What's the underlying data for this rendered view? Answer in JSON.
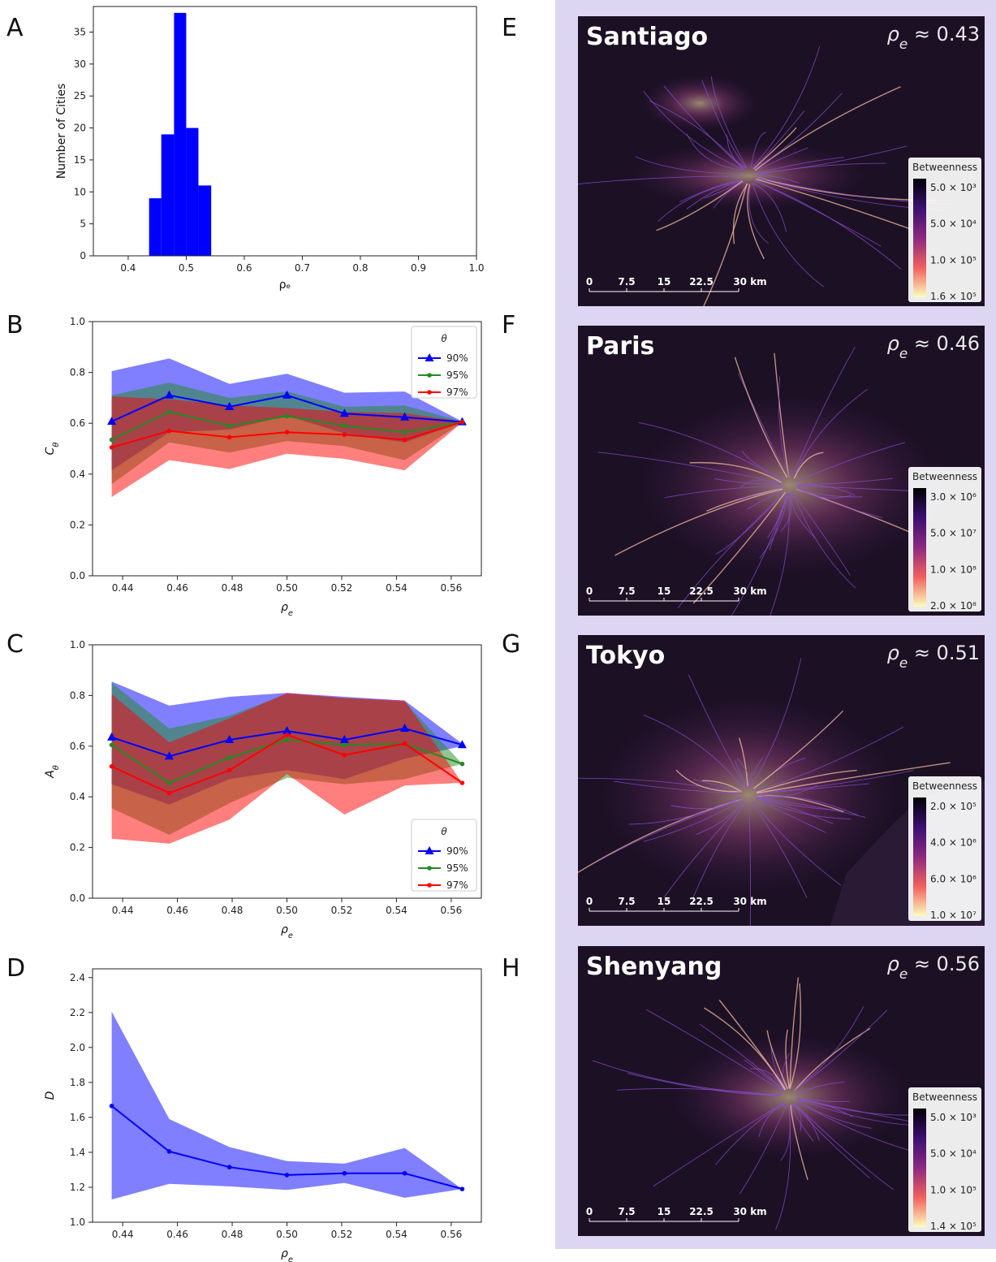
{
  "chart_data": [
    {
      "panel": "A",
      "type": "bar",
      "bins": [
        [
          0.436,
          0.457
        ],
        [
          0.457,
          0.479
        ],
        [
          0.479,
          0.5
        ],
        [
          0.5,
          0.521
        ],
        [
          0.521,
          0.543
        ],
        [
          0.543,
          0.564
        ]
      ],
      "values": [
        9,
        19,
        38,
        20,
        11,
        0
      ],
      "xlim": [
        0.34,
        1.0
      ],
      "ylim": [
        0,
        39
      ],
      "xticks": [
        0.4,
        0.5,
        0.6,
        0.7,
        0.8,
        0.9,
        1.0
      ],
      "xtick_labels": [
        "0.4",
        "0.5",
        "0.6",
        "0.7",
        "0.8",
        "0.9",
        "1.0"
      ],
      "yticks": [
        0,
        5,
        10,
        15,
        20,
        25,
        30,
        35
      ],
      "ylabel": "Number of Cities",
      "xlabel": "ρₑ",
      "color": "#0000ff"
    },
    {
      "panel": "B",
      "type": "line",
      "x": [
        0.436,
        0.457,
        0.479,
        0.5,
        0.521,
        0.543,
        0.564
      ],
      "xlim": [
        0.429,
        0.571
      ],
      "ylim": [
        0.0,
        1.0
      ],
      "xticks": [
        0.44,
        0.46,
        0.48,
        0.5,
        0.52,
        0.54,
        0.56
      ],
      "xtick_labels": [
        "0.44",
        "0.46",
        "0.48",
        "0.50",
        "0.52",
        "0.54",
        "0.56"
      ],
      "yticks": [
        0.0,
        0.2,
        0.4,
        0.6,
        0.8,
        1.0
      ],
      "ytick_labels": [
        "0.0",
        "0.2",
        "0.4",
        "0.6",
        "0.8",
        "1.0"
      ],
      "ylabel": "C",
      "ylabel_sub": "θ",
      "xlabel": "ρ",
      "xlabel_sub": "e",
      "legend": {
        "title": "θ",
        "position": "top-right"
      },
      "series": [
        {
          "name": "90%",
          "color": "#0000ff",
          "marker": "triangle",
          "values": [
            0.607,
            0.71,
            0.665,
            0.71,
            0.638,
            0.624,
            0.605
          ],
          "upper": [
            0.805,
            0.855,
            0.755,
            0.795,
            0.72,
            0.725,
            0.607
          ],
          "lower": [
            0.415,
            0.565,
            0.575,
            0.63,
            0.56,
            0.525,
            0.603
          ]
        },
        {
          "name": "95%",
          "color": "#228b22",
          "marker": "dot",
          "values": [
            0.535,
            0.645,
            0.59,
            0.628,
            0.59,
            0.565,
            0.605
          ],
          "upper": [
            0.71,
            0.76,
            0.7,
            0.725,
            0.665,
            0.67,
            0.607
          ],
          "lower": [
            0.36,
            0.525,
            0.485,
            0.53,
            0.51,
            0.455,
            0.603
          ]
        },
        {
          "name": "97%",
          "color": "#ff0000",
          "marker": "dot",
          "values": [
            0.505,
            0.57,
            0.545,
            0.565,
            0.555,
            0.535,
            0.605
          ],
          "upper": [
            0.705,
            0.695,
            0.67,
            0.66,
            0.645,
            0.64,
            0.607
          ],
          "lower": [
            0.31,
            0.455,
            0.42,
            0.48,
            0.46,
            0.415,
            0.603
          ]
        }
      ]
    },
    {
      "panel": "C",
      "type": "line",
      "x": [
        0.436,
        0.457,
        0.479,
        0.5,
        0.521,
        0.543,
        0.564
      ],
      "xlim": [
        0.429,
        0.571
      ],
      "ylim": [
        0.0,
        1.0
      ],
      "xticks": [
        0.44,
        0.46,
        0.48,
        0.5,
        0.52,
        0.54,
        0.56
      ],
      "xtick_labels": [
        "0.44",
        "0.46",
        "0.48",
        "0.50",
        "0.52",
        "0.54",
        "0.56"
      ],
      "yticks": [
        0.0,
        0.2,
        0.4,
        0.6,
        0.8,
        1.0
      ],
      "ytick_labels": [
        "0.0",
        "0.2",
        "0.4",
        "0.6",
        "0.8",
        "1.0"
      ],
      "ylabel": "A",
      "ylabel_sub": "θ",
      "xlabel": "ρ",
      "xlabel_sub": "e",
      "legend": {
        "title": "θ",
        "position": "bottom-right"
      },
      "series": [
        {
          "name": "90%",
          "color": "#0000ff",
          "marker": "triangle",
          "values": [
            0.635,
            0.56,
            0.625,
            0.66,
            0.625,
            0.67,
            0.605
          ],
          "upper": [
            0.855,
            0.76,
            0.795,
            0.81,
            0.795,
            0.78,
            0.61
          ],
          "lower": [
            0.45,
            0.37,
            0.47,
            0.505,
            0.47,
            0.55,
            0.6
          ]
        },
        {
          "name": "95%",
          "color": "#228b22",
          "marker": "dot",
          "values": [
            0.605,
            0.455,
            0.555,
            0.625,
            0.605,
            0.61,
            0.53
          ],
          "upper": [
            0.85,
            0.67,
            0.72,
            0.805,
            0.79,
            0.775,
            0.53
          ],
          "lower": [
            0.355,
            0.25,
            0.375,
            0.475,
            0.45,
            0.47,
            0.53
          ]
        },
        {
          "name": "97%",
          "color": "#ff0000",
          "marker": "dot",
          "values": [
            0.52,
            0.415,
            0.505,
            0.645,
            0.565,
            0.61,
            0.455
          ],
          "upper": [
            0.805,
            0.615,
            0.71,
            0.81,
            0.79,
            0.78,
            0.455
          ],
          "lower": [
            0.235,
            0.215,
            0.31,
            0.49,
            0.33,
            0.445,
            0.455
          ]
        }
      ]
    },
    {
      "panel": "D",
      "type": "line",
      "x": [
        0.436,
        0.457,
        0.479,
        0.5,
        0.521,
        0.543,
        0.564
      ],
      "xlim": [
        0.429,
        0.571
      ],
      "ylim": [
        1.0,
        2.45
      ],
      "xticks": [
        0.44,
        0.46,
        0.48,
        0.5,
        0.52,
        0.54,
        0.56
      ],
      "xtick_labels": [
        "0.44",
        "0.46",
        "0.48",
        "0.50",
        "0.52",
        "0.54",
        "0.56"
      ],
      "yticks": [
        1.0,
        1.2,
        1.4,
        1.6,
        1.8,
        2.0,
        2.2,
        2.4
      ],
      "ytick_labels": [
        "1.0",
        "1.2",
        "1.4",
        "1.6",
        "1.8",
        "2.0",
        "2.2",
        "2.4"
      ],
      "ylabel": "D",
      "ylabel_sub": "",
      "xlabel": "ρ",
      "xlabel_sub": "e",
      "series": [
        {
          "color": "#0000ff",
          "marker": "dot",
          "values": [
            1.665,
            1.405,
            1.315,
            1.27,
            1.28,
            1.28,
            1.19
          ],
          "upper": [
            2.205,
            1.59,
            1.43,
            1.35,
            1.335,
            1.425,
            1.19
          ],
          "lower": [
            1.13,
            1.22,
            1.205,
            1.185,
            1.225,
            1.14,
            1.19
          ]
        }
      ]
    }
  ],
  "panel_labels": {
    "A": "A",
    "B": "B",
    "C": "C",
    "D": "D",
    "E": "E",
    "F": "F",
    "G": "G",
    "H": "H"
  },
  "maps": [
    {
      "panel": "E",
      "city": "Santiago",
      "rho_prefix": "ρ",
      "rho_sub": "e",
      "rho_value": " ≈ 0.43",
      "colorbar_title": "Betweenness",
      "colorbar_labels": [
        "5.0 × 10³",
        "5.0 × 10⁴",
        "1.0 × 10⁵",
        "1.6 × 10⁵"
      ],
      "scalebar_labels": [
        "0",
        "7.5",
        "15",
        "22.5",
        "30 km"
      ]
    },
    {
      "panel": "F",
      "city": "Paris",
      "rho_prefix": "ρ",
      "rho_sub": "e",
      "rho_value": " ≈ 0.46",
      "colorbar_title": "Betweenness",
      "colorbar_labels": [
        "3.0 × 10⁶",
        "5.0 × 10⁷",
        "1.0 × 10⁸",
        "2.0 × 10⁸"
      ],
      "scalebar_labels": [
        "0",
        "7.5",
        "15",
        "22.5",
        "30 km"
      ]
    },
    {
      "panel": "G",
      "city": "Tokyo",
      "rho_prefix": "ρ",
      "rho_sub": "e",
      "rho_value": " ≈ 0.51",
      "colorbar_title": "Betweenness",
      "colorbar_labels": [
        "2.0 × 10⁵",
        "4.0 × 10⁶",
        "6.0 × 10⁶",
        "1.0 × 10⁷"
      ],
      "scalebar_labels": [
        "0",
        "7.5",
        "15",
        "22.5",
        "30 km"
      ]
    },
    {
      "panel": "H",
      "city": "Shenyang",
      "rho_prefix": "ρ",
      "rho_sub": "e",
      "rho_value": " ≈ 0.56",
      "colorbar_title": "Betweenness",
      "colorbar_labels": [
        "5.0 × 10³",
        "5.0 × 10⁴",
        "1.0 × 10⁵",
        "1.4 × 10⁵"
      ],
      "scalebar_labels": [
        "0",
        "7.5",
        "15",
        "22.5",
        "30 km"
      ]
    }
  ],
  "colors": {
    "map_panel_bg": "#ddd6f2",
    "map_dark": "#1c1024",
    "road": "#8a4fd0",
    "hot": "#ffe7b0"
  }
}
